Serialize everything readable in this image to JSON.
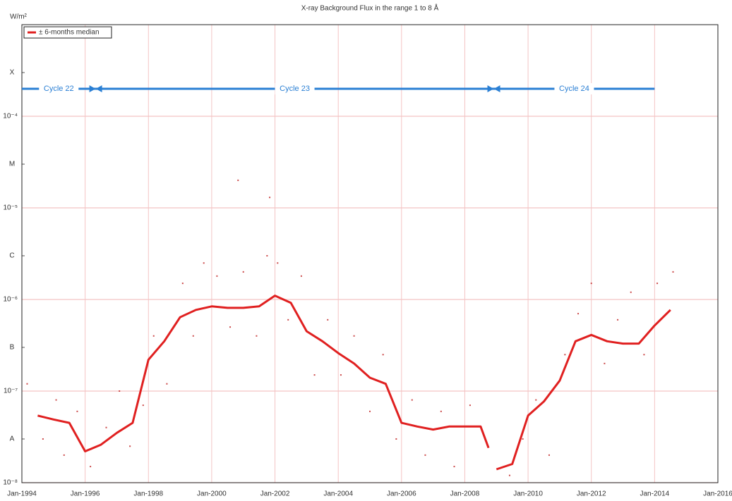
{
  "chart_data": {
    "type": "line",
    "title": "X-ray Background Flux in the range 1 to 8 Å",
    "y_label": "W/m²",
    "log_y": true,
    "grid": true,
    "legend": "top-left",
    "xlim": [
      "1994-01",
      "2016-01"
    ],
    "xticks": [
      {
        "value": "1994-01",
        "label": "Jan-1994"
      },
      {
        "value": "1996-01",
        "label": "Jan-1996"
      },
      {
        "value": "1998-01",
        "label": "Jan-1998"
      },
      {
        "value": "2000-01",
        "label": "Jan-2000"
      },
      {
        "value": "2002-01",
        "label": "Jan-2002"
      },
      {
        "value": "2004-01",
        "label": "Jan-2004"
      },
      {
        "value": "2006-01",
        "label": "Jan-2006"
      },
      {
        "value": "2008-01",
        "label": "Jan-2008"
      },
      {
        "value": "2010-01",
        "label": "Jan-2010"
      },
      {
        "value": "2012-01",
        "label": "Jan-2012"
      },
      {
        "value": "2014-01",
        "label": "Jan-2014"
      },
      {
        "value": "2016-01",
        "label": "Jan-2016"
      }
    ],
    "ylim": [
      1e-08,
      0.001
    ],
    "yticks": [
      {
        "value": 1e-08,
        "label": "10⁻⁸"
      },
      {
        "value": 1e-07,
        "label": "10⁻⁷"
      },
      {
        "value": 1e-06,
        "label": "10⁻⁶"
      },
      {
        "value": 1e-05,
        "label": "10⁻⁵"
      },
      {
        "value": 0.0001,
        "label": "10⁻⁴"
      }
    ],
    "class_ticks": [
      {
        "value": 3e-08,
        "label": "A"
      },
      {
        "value": 3e-07,
        "label": "B"
      },
      {
        "value": 3e-06,
        "label": "C"
      },
      {
        "value": 3e-05,
        "label": "M"
      },
      {
        "value": 0.0003,
        "label": "X"
      }
    ],
    "cycles": [
      {
        "label": "Cycle 22",
        "start": "1994-01",
        "end": "1996-05"
      },
      {
        "label": "Cycle 23",
        "start": "1996-05",
        "end": "2008-12"
      },
      {
        "label": "Cycle 24",
        "start": "2008-12",
        "end": "2014-01"
      }
    ],
    "cycle_color": "#2a7fd4",
    "x": [
      "1994-07",
      "1995-01",
      "1995-07",
      "1996-01",
      "1996-07",
      "1997-01",
      "1997-07",
      "1998-01",
      "1998-07",
      "1999-01",
      "1999-07",
      "2000-01",
      "2000-07",
      "2001-01",
      "2001-07",
      "2002-01",
      "2002-07",
      "2003-01",
      "2003-07",
      "2004-01",
      "2004-07",
      "2005-01",
      "2005-07",
      "2006-01",
      "2006-07",
      "2007-01",
      "2007-07",
      "2008-01",
      "2008-07",
      "2008-10",
      "2008-11",
      "2009-01",
      "2009-07",
      "2010-01",
      "2010-07",
      "2011-01",
      "2011-07",
      "2012-01",
      "2012-07",
      "2013-01",
      "2013-07",
      "2014-01",
      "2014-07"
    ],
    "series": [
      {
        "name": "± 6-months median",
        "color": "#e02020",
        "values": [
          5.4e-08,
          4.9e-08,
          4.5e-08,
          2.2e-08,
          2.6e-08,
          3.5e-08,
          4.5e-08,
          2.2e-07,
          3.5e-07,
          6.4e-07,
          7.7e-07,
          8.4e-07,
          8.1e-07,
          8.1e-07,
          8.4e-07,
          1.1e-06,
          9.2e-07,
          4.5e-07,
          3.5e-07,
          2.6e-07,
          2e-07,
          1.4e-07,
          1.2e-07,
          4.5e-08,
          4.1e-08,
          3.8e-08,
          4.1e-08,
          4.1e-08,
          4.1e-08,
          2.4e-08,
          null,
          1.4e-08,
          1.6e-08,
          5.4e-08,
          7.7e-08,
          1.3e-07,
          3.5e-07,
          4.1e-07,
          3.5e-07,
          3.3e-07,
          3.3e-07,
          5.2e-07,
          7.7e-07
        ]
      }
    ],
    "scatter": {
      "color": "#cc4a4a",
      "x": [
        "1994-03",
        "1994-09",
        "1995-02",
        "1995-05",
        "1995-10",
        "1996-03",
        "1996-09",
        "1997-02",
        "1997-06",
        "1997-11",
        "1998-03",
        "1998-08",
        "1999-02",
        "1999-06",
        "1999-10",
        "2000-03",
        "2000-08",
        "2001-01",
        "2001-06",
        "2001-10",
        "2002-02",
        "2002-06",
        "2002-11",
        "2003-04",
        "2003-09",
        "2004-02",
        "2004-07",
        "2005-01",
        "2005-06",
        "2005-11",
        "2006-05",
        "2006-10",
        "2007-04",
        "2007-09",
        "2008-03",
        "2009-06",
        "2009-11",
        "2010-04",
        "2010-09",
        "2011-03",
        "2011-08",
        "2012-01",
        "2012-06",
        "2012-11",
        "2013-04",
        "2013-09",
        "2014-02",
        "2014-08",
        "2000-11",
        "2001-11"
      ],
      "values": [
        1.2e-07,
        3e-08,
        8e-08,
        2e-08,
        6e-08,
        1.5e-08,
        4e-08,
        1e-07,
        2.5e-08,
        7e-08,
        4e-07,
        1.2e-07,
        1.5e-06,
        4e-07,
        2.5e-06,
        1.8e-06,
        5e-07,
        2e-06,
        4e-07,
        3e-06,
        2.5e-06,
        6e-07,
        1.8e-06,
        1.5e-07,
        6e-07,
        1.5e-07,
        4e-07,
        6e-08,
        2.5e-07,
        3e-08,
        8e-08,
        2e-08,
        6e-08,
        1.5e-08,
        7e-08,
        1.2e-08,
        3e-08,
        8e-08,
        2e-08,
        2.5e-07,
        7e-07,
        1.5e-06,
        2e-07,
        6e-07,
        1.2e-06,
        2.5e-07,
        1.5e-06,
        2e-06,
        2e-05,
        1.3e-05
      ]
    }
  }
}
